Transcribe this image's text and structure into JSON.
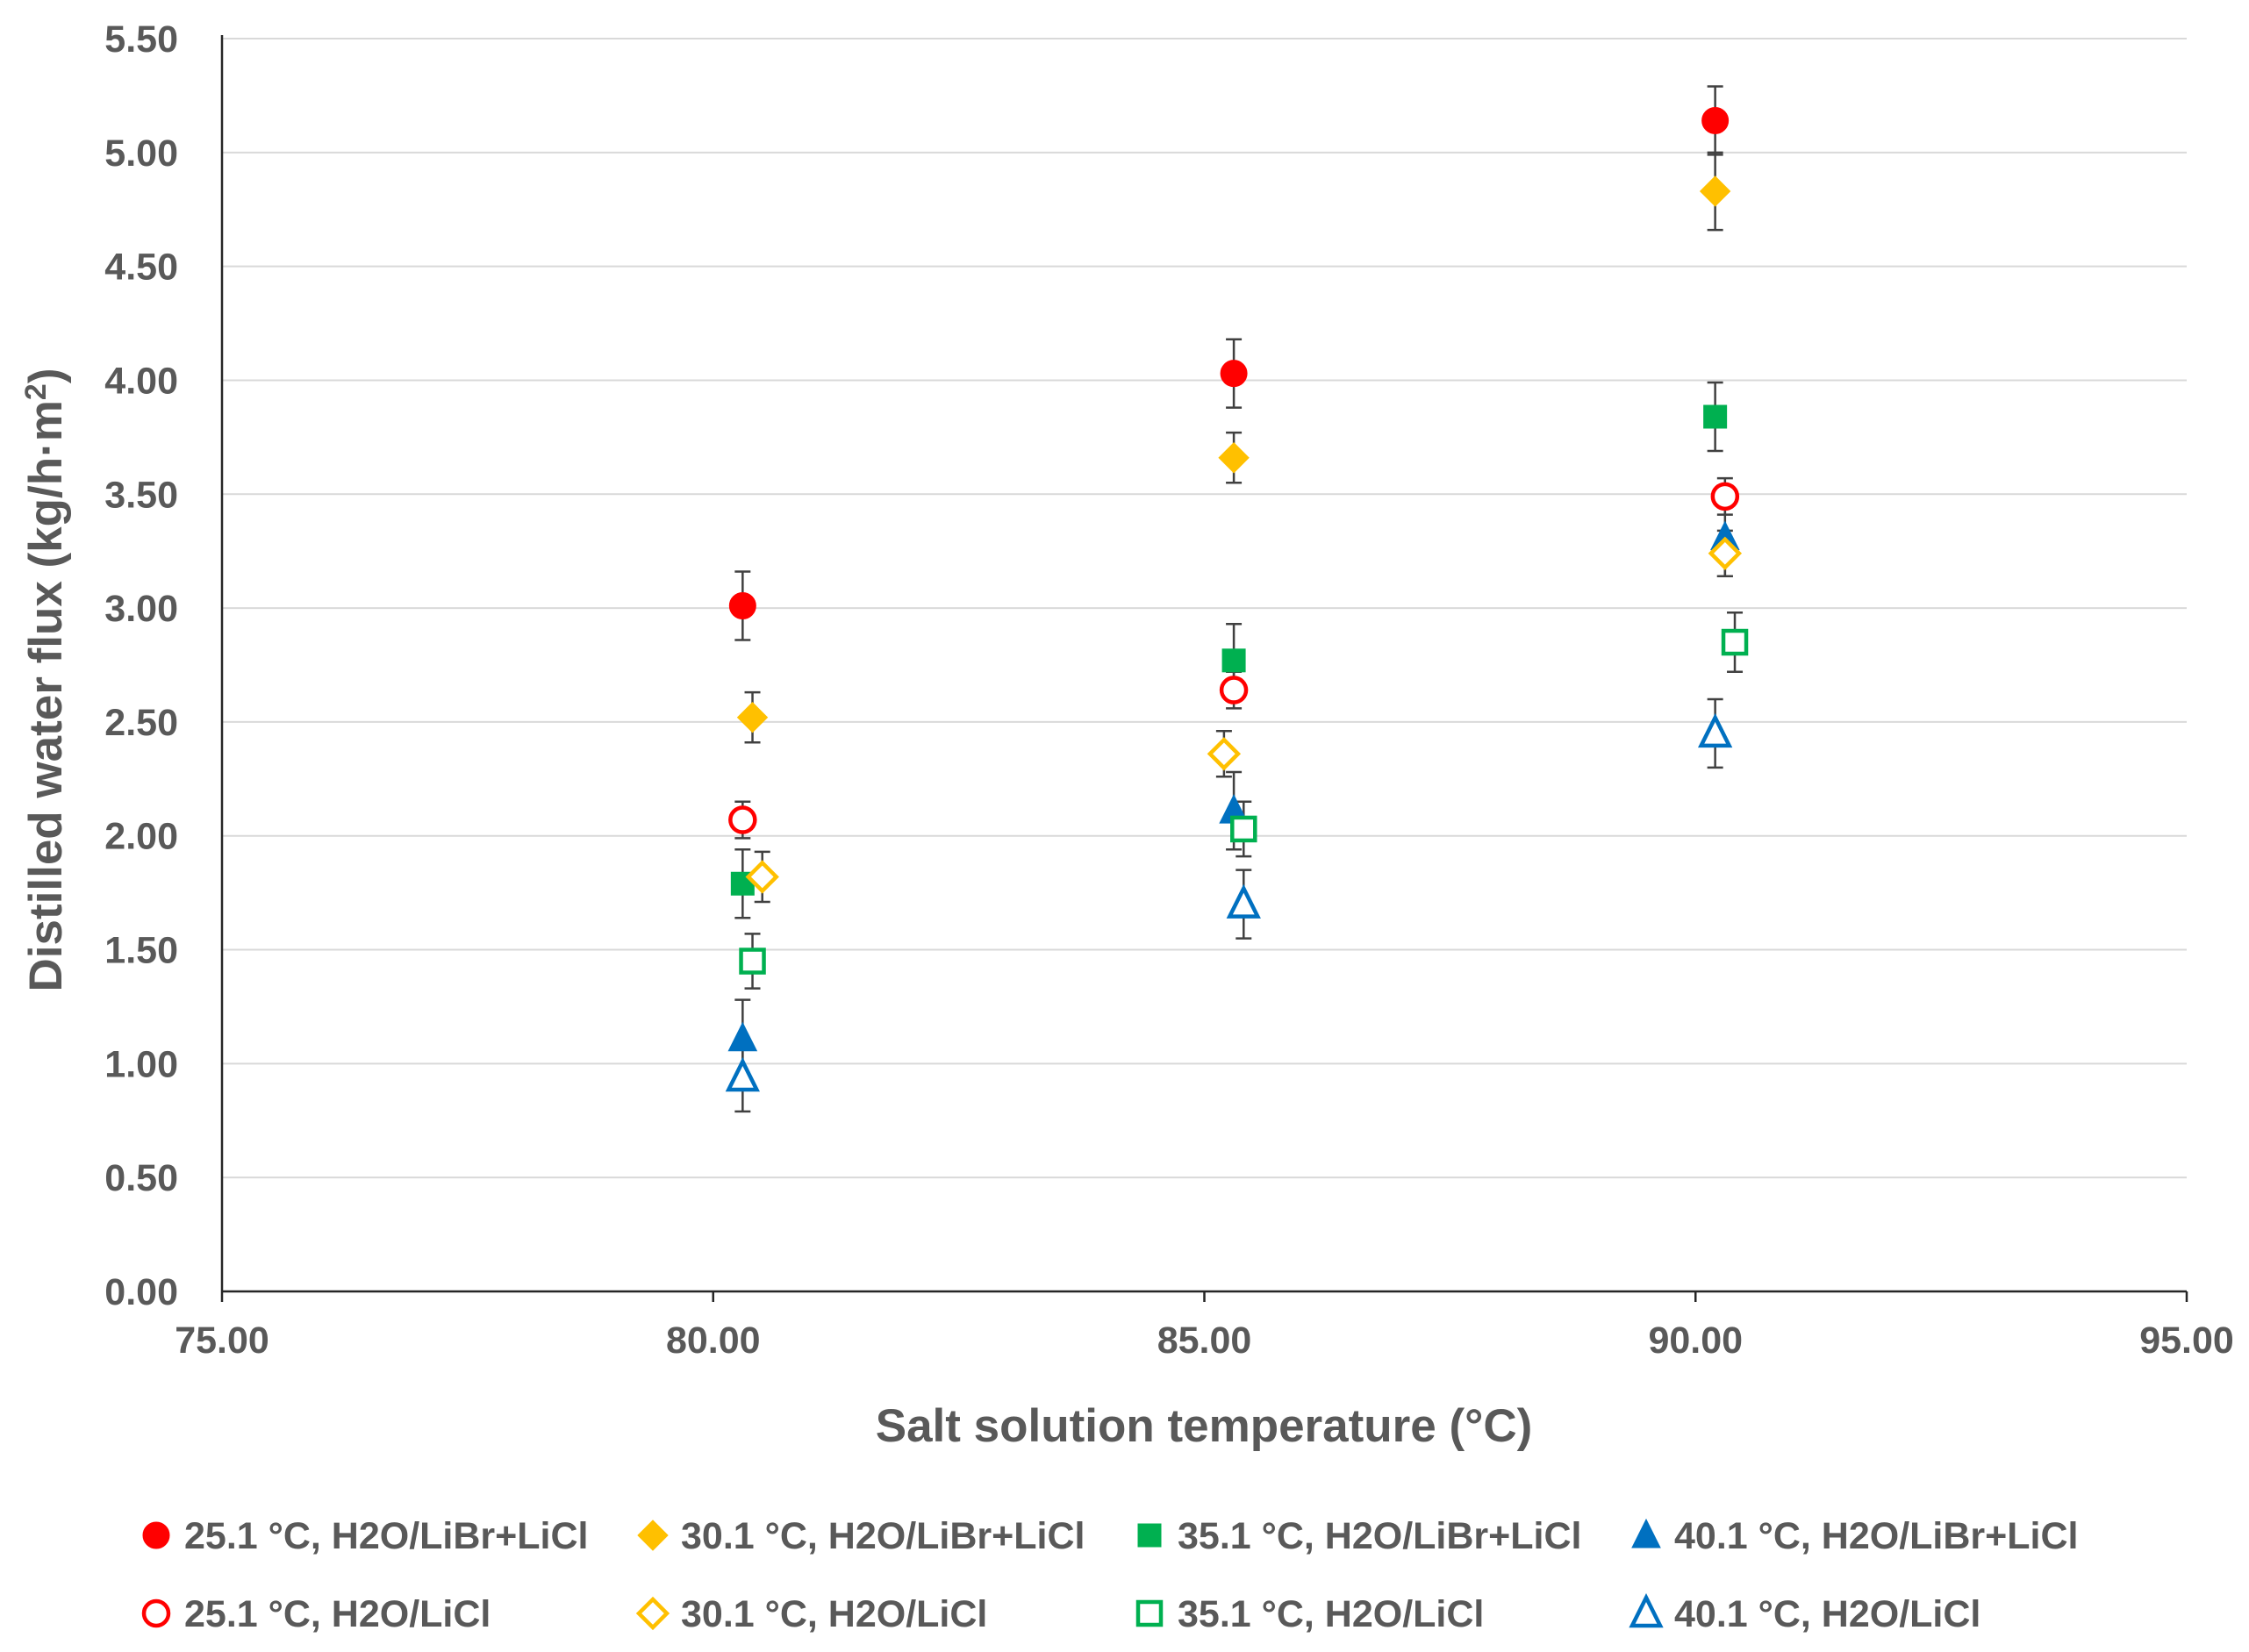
{
  "chart_data": {
    "type": "scatter",
    "title": "",
    "xlabel": "Salt solution temperature (°C)",
    "ylabel_main": "Distilled water flux (kg/h·m",
    "ylabel_sup": "2",
    "ylabel_close": ")",
    "xlim": [
      75,
      95
    ],
    "ylim": [
      0,
      5.5
    ],
    "xticks": [
      "75.00",
      "80.00",
      "85.00",
      "90.00",
      "95.00"
    ],
    "yticks": [
      "0.00",
      "0.50",
      "1.00",
      "1.50",
      "2.00",
      "2.50",
      "3.00",
      "3.50",
      "4.00",
      "4.50",
      "5.00",
      "5.50"
    ],
    "grid": "horizontal",
    "legend_position": "bottom",
    "series": [
      {
        "name": "25.1 °C, H2O/LiBr+LiCl",
        "marker": "circle",
        "filled": true,
        "color": "#ff0000",
        "points": [
          {
            "x": 80.3,
            "y": 3.01,
            "err": 0.15
          },
          {
            "x": 85.3,
            "y": 4.03,
            "err": 0.15
          },
          {
            "x": 90.2,
            "y": 5.14,
            "err": 0.15
          }
        ]
      },
      {
        "name": "30.1 °C, H2O/LiBr+LiCl",
        "marker": "diamond",
        "filled": true,
        "color": "#ffc000",
        "points": [
          {
            "x": 80.4,
            "y": 2.52,
            "err": 0.11
          },
          {
            "x": 85.3,
            "y": 3.66,
            "err": 0.11
          },
          {
            "x": 90.2,
            "y": 4.83,
            "err": 0.17
          }
        ]
      },
      {
        "name": "35.1 °C, H2O/LiBr+LiCl",
        "marker": "square",
        "filled": true,
        "color": "#00b050",
        "points": [
          {
            "x": 80.3,
            "y": 1.79,
            "err": 0.15
          },
          {
            "x": 85.3,
            "y": 2.77,
            "err": 0.16
          },
          {
            "x": 90.2,
            "y": 3.84,
            "err": 0.15
          }
        ]
      },
      {
        "name": "40.1 °C, H2O/LiBr+LiCl",
        "marker": "triangle",
        "filled": true,
        "color": "#0070c0",
        "points": [
          {
            "x": 80.3,
            "y": 1.11,
            "err": 0.17
          },
          {
            "x": 85.3,
            "y": 2.11,
            "err": 0.17
          },
          {
            "x": 90.3,
            "y": 3.31,
            "err": 0.17
          }
        ]
      },
      {
        "name": "25.1 °C, H2O/LiCl",
        "marker": "circle",
        "filled": false,
        "color": "#ff0000",
        "points": [
          {
            "x": 80.3,
            "y": 2.07,
            "err": 0.08
          },
          {
            "x": 85.3,
            "y": 2.64,
            "err": 0.08
          },
          {
            "x": 90.3,
            "y": 3.49,
            "err": 0.08
          }
        ]
      },
      {
        "name": "30.1 °C, H2O/LiCl",
        "marker": "diamond",
        "filled": false,
        "color": "#ffc000",
        "points": [
          {
            "x": 80.5,
            "y": 1.82,
            "err": 0.11
          },
          {
            "x": 85.2,
            "y": 2.36,
            "err": 0.1
          },
          {
            "x": 90.3,
            "y": 3.24,
            "err": 0.1
          }
        ]
      },
      {
        "name": "35.1 °C, H2O/LiCl",
        "marker": "square",
        "filled": false,
        "color": "#00b050",
        "points": [
          {
            "x": 80.4,
            "y": 1.45,
            "err": 0.12
          },
          {
            "x": 85.4,
            "y": 2.03,
            "err": 0.12
          },
          {
            "x": 90.4,
            "y": 2.85,
            "err": 0.13
          }
        ]
      },
      {
        "name": "40.1 °C, H2O/LiCl",
        "marker": "triangle",
        "filled": false,
        "color": "#0070c0",
        "points": [
          {
            "x": 80.3,
            "y": 0.94,
            "err": 0.15
          },
          {
            "x": 85.4,
            "y": 1.7,
            "err": 0.15
          },
          {
            "x": 90.2,
            "y": 2.45,
            "err": 0.15
          }
        ]
      }
    ]
  }
}
